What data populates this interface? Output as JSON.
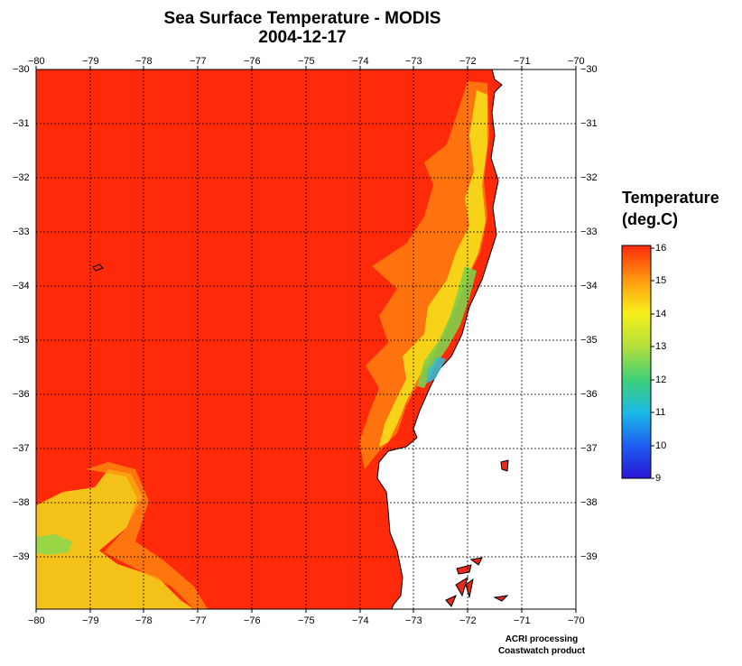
{
  "title": "Sea Surface Temperature - MODIS",
  "date": "2004-12-17",
  "legend": {
    "title_line1": "Temperature",
    "title_line2": "(deg.C)",
    "min": 9,
    "max": 16,
    "ticks": [
      "16",
      "15",
      "14",
      "13",
      "12",
      "11",
      "10",
      "9"
    ]
  },
  "axes": {
    "lon_labels": [
      "−80",
      "−79",
      "−78",
      "−77",
      "−76",
      "−75",
      "−74",
      "−73",
      "−72",
      "−71",
      "−70"
    ],
    "lat_labels": [
      "−30",
      "−31",
      "−32",
      "−33",
      "−34",
      "−35",
      "−36",
      "−37",
      "−38",
      "−39"
    ]
  },
  "credit": {
    "line1": "ACRI processing",
    "line2": "Coastwatch product"
  }
}
